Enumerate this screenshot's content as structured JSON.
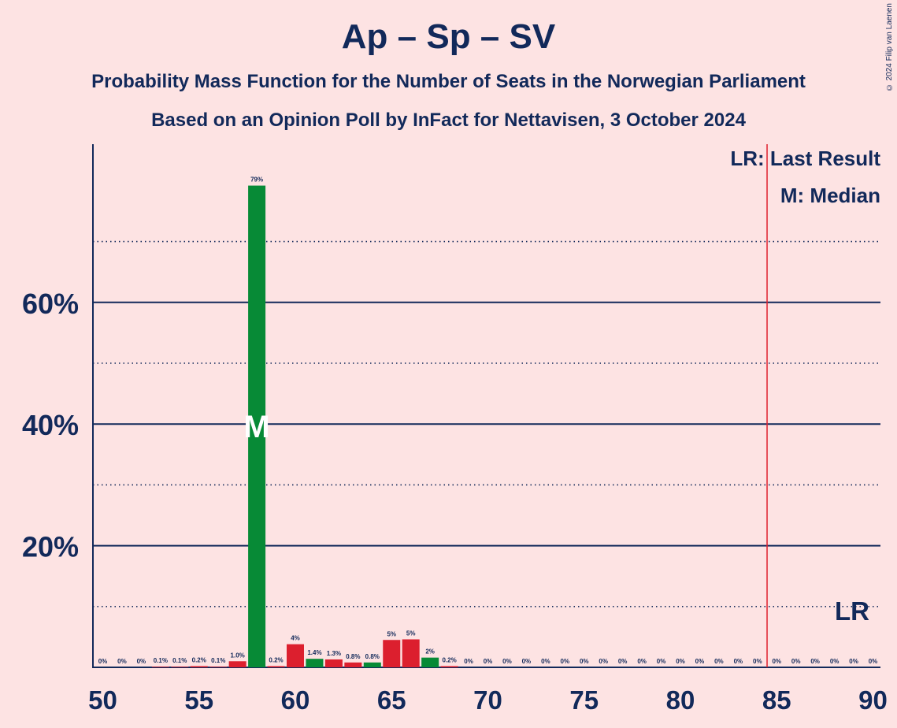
{
  "title": "Ap – Sp – SV",
  "subtitle_1": "Probability Mass Function for the Number of Seats in the Norwegian Parliament",
  "subtitle_2": "Based on an Opinion Poll by InFact for Nettavisen, 3 October 2024",
  "copyright": "© 2024 Filip van Laenen",
  "legend": {
    "last_result": "LR: Last Result",
    "median": "M: Median",
    "lr_marker": "LR",
    "median_marker": "M"
  },
  "colors": {
    "background": "#fde3e3",
    "text": "#12295a",
    "green": "#078a36",
    "red": "#dc1f2e",
    "last_result_line": "#e0202d"
  },
  "chart_data": {
    "type": "bar",
    "x": [
      50,
      51,
      52,
      53,
      54,
      55,
      56,
      57,
      58,
      59,
      60,
      61,
      62,
      63,
      64,
      65,
      66,
      67,
      68,
      69,
      70,
      71,
      72,
      73,
      74,
      75,
      76,
      77,
      78,
      79,
      80,
      81,
      82,
      83,
      84,
      85,
      86,
      87,
      88,
      89,
      90
    ],
    "values": [
      0,
      0,
      0,
      0.1,
      0.1,
      0.2,
      0.1,
      1.0,
      79,
      0.2,
      4,
      1.4,
      1.3,
      0.8,
      0.8,
      5,
      5,
      2,
      0.2,
      0,
      0,
      0,
      0,
      0,
      0,
      0,
      0,
      0,
      0,
      0,
      0,
      0,
      0,
      0,
      0,
      0,
      0,
      0,
      0,
      0,
      0
    ],
    "bar_heights_estimated": [
      0,
      0,
      0,
      0.1,
      0.1,
      0.2,
      0.1,
      1.0,
      79.2,
      0.2,
      3.8,
      1.4,
      1.3,
      0.8,
      0.8,
      4.5,
      4.6,
      1.6,
      0.2,
      0,
      0,
      0,
      0,
      0,
      0,
      0,
      0,
      0,
      0,
      0,
      0,
      0,
      0,
      0,
      0,
      0,
      0,
      0,
      0,
      0,
      0
    ],
    "labels": [
      "0%",
      "0%",
      "0%",
      "0.1%",
      "0.1%",
      "0.2%",
      "0.1%",
      "1.0%",
      "79%",
      "0.2%",
      "4%",
      "1.4%",
      "1.3%",
      "0.8%",
      "0.8%",
      "5%",
      "5%",
      "2%",
      "0.2%",
      "0%",
      "0%",
      "0%",
      "0%",
      "0%",
      "0%",
      "0%",
      "0%",
      "0%",
      "0%",
      "0%",
      "0%",
      "0%",
      "0%",
      "0%",
      "0%",
      "0%",
      "0%",
      "0%",
      "0%",
      "0%",
      "0%"
    ],
    "colors": [
      "red",
      "red",
      "red",
      "red",
      "red",
      "red",
      "red",
      "red",
      "green",
      "red",
      "red",
      "green",
      "red",
      "red",
      "green",
      "red",
      "red",
      "green",
      "red",
      "red",
      "red",
      "red",
      "red",
      "red",
      "red",
      "red",
      "red",
      "red",
      "red",
      "red",
      "red",
      "red",
      "red",
      "red",
      "red",
      "red",
      "red",
      "red",
      "red",
      "red",
      "red"
    ],
    "xlim": [
      50,
      90
    ],
    "ylim": [
      0,
      86
    ],
    "x_ticks": [
      "50",
      "55",
      "60",
      "65",
      "70",
      "75",
      "80",
      "85",
      "90"
    ],
    "y_ticks": [
      "20%",
      "40%",
      "60%"
    ],
    "median": 58,
    "last_result": 84.5,
    "grid": true
  }
}
